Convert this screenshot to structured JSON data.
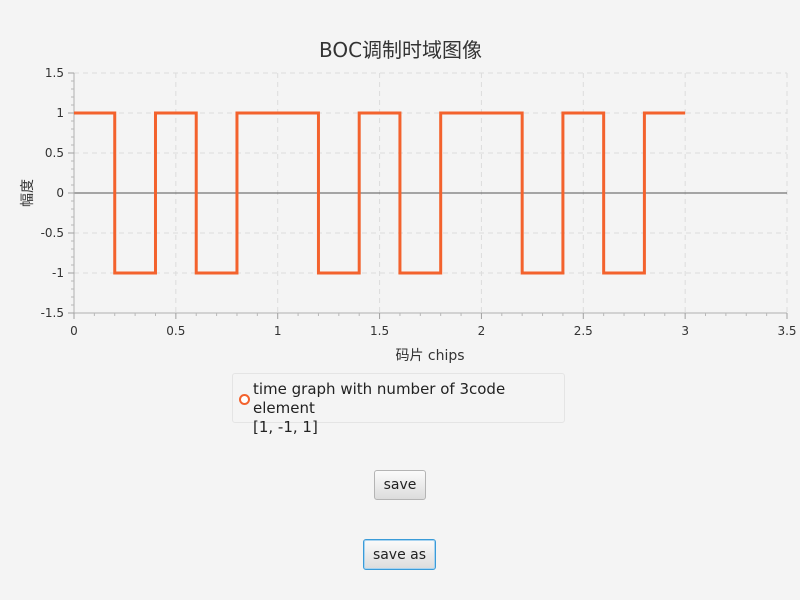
{
  "chart_data": {
    "type": "line",
    "title": "BOC调制时域图像",
    "xlabel": "码片 chips",
    "ylabel": "幅度",
    "xlim": [
      0,
      3.5
    ],
    "ylim": [
      -1.5,
      1.5
    ],
    "x_ticks": [
      "0",
      "0.5",
      "1",
      "1.5",
      "2",
      "2.5",
      "3",
      "3.5"
    ],
    "x_tick_values": [
      0,
      0.5,
      1,
      1.5,
      2,
      2.5,
      3,
      3.5
    ],
    "y_ticks": [
      "1.5",
      "1",
      "0.5",
      "0",
      "-0.5",
      "-1",
      "-1.5"
    ],
    "y_tick_values": [
      1.5,
      1,
      0.5,
      0,
      -0.5,
      -1,
      -1.5
    ],
    "grid": true,
    "legend_position": "bottom",
    "series": [
      {
        "name": "time graph with number of 3code element\n[1, -1, 1]",
        "color": "#f3622d",
        "x": [
          0,
          0.2,
          0.2,
          0.4,
          0.4,
          0.6,
          0.6,
          0.8,
          0.8,
          1.2,
          1.2,
          1.4,
          1.4,
          1.6,
          1.6,
          1.8,
          1.8,
          2.2,
          2.2,
          2.4,
          2.4,
          2.6,
          2.6,
          2.8,
          2.8,
          3.0
        ],
        "y": [
          1,
          1,
          -1,
          -1,
          1,
          1,
          -1,
          -1,
          1,
          1,
          -1,
          -1,
          1,
          1,
          -1,
          -1,
          1,
          1,
          -1,
          -1,
          1,
          1,
          -1,
          -1,
          1,
          1
        ]
      }
    ]
  },
  "buttons": {
    "save_label": "save",
    "save_as_label": "save as"
  }
}
